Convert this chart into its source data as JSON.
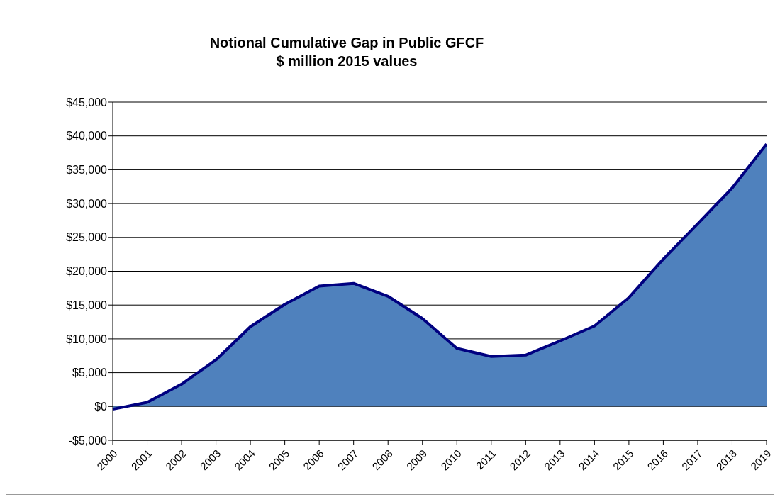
{
  "chart_data": {
    "type": "area",
    "title": "Notional Cumulative Gap in Public GFCF",
    "subtitle": "$ million 2015 values",
    "categories": [
      "2000",
      "2001",
      "2002",
      "2003",
      "2004",
      "2005",
      "2006",
      "2007",
      "2008",
      "2009",
      "2010",
      "2011",
      "2012",
      "2013",
      "2014",
      "2015",
      "2016",
      "2017",
      "2018",
      "2019"
    ],
    "series": [
      {
        "color": "#4f81bd",
        "values": [
          -400,
          600,
          3300,
          6900,
          11800,
          15100,
          17800,
          18200,
          16300,
          13000,
          8600,
          7400,
          7600,
          9700,
          11900,
          16100,
          21800,
          27000,
          32300,
          38800
        ]
      }
    ],
    "ylim": [
      -5000,
      45000
    ],
    "yticks": [
      {
        "value": -5000,
        "label": "-$5,000"
      },
      {
        "value": 0,
        "label": "$0"
      },
      {
        "value": 5000,
        "label": "$5,000"
      },
      {
        "value": 10000,
        "label": "$10,000"
      },
      {
        "value": 15000,
        "label": "$15,000"
      },
      {
        "value": 20000,
        "label": "$20,000"
      },
      {
        "value": 25000,
        "label": "$25,000"
      },
      {
        "value": 30000,
        "label": "$30,000"
      },
      {
        "value": 35000,
        "label": "$35,000"
      },
      {
        "value": 40000,
        "label": "$40,000"
      },
      {
        "value": 45000,
        "label": "$45,000"
      }
    ],
    "grid": "y"
  }
}
